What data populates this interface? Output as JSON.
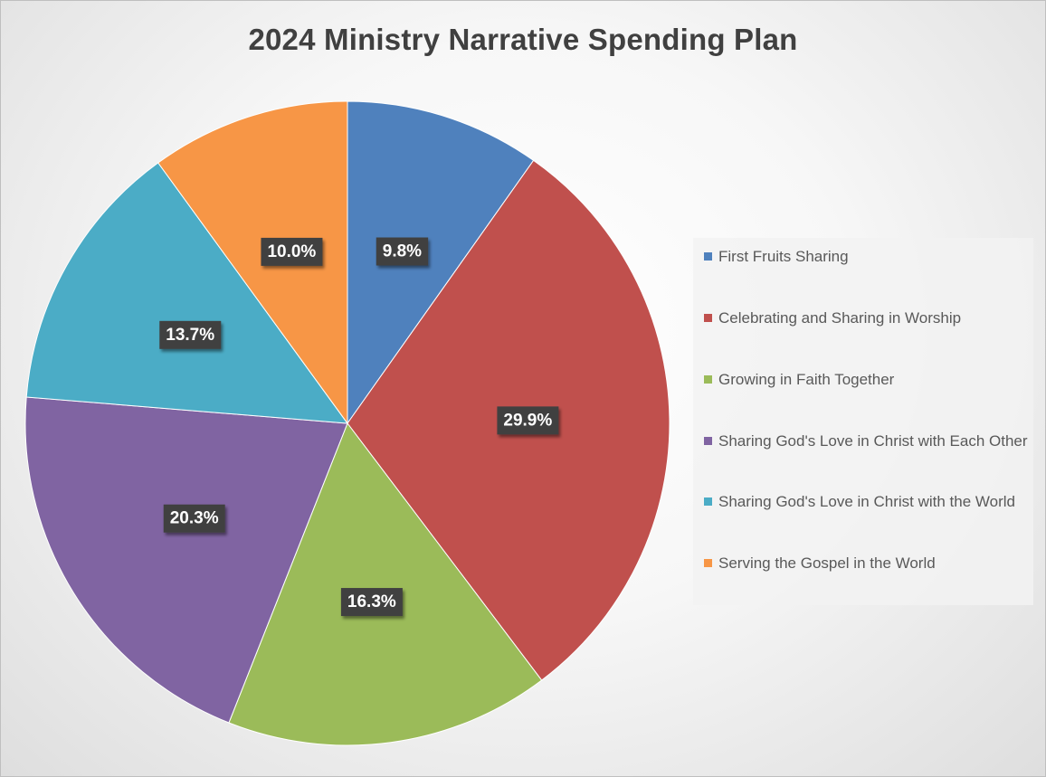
{
  "chart_data": {
    "type": "pie",
    "title": "2024 Ministry Narrative Spending Plan",
    "categories": [
      "First Fruits Sharing",
      "Celebrating and Sharing in Worship",
      "Growing in Faith Together",
      "Sharing God's Love in Christ with Each Other",
      "Sharing God's Love in Christ with the World",
      "Serving the Gospel in the World"
    ],
    "values": [
      9.8,
      29.9,
      16.3,
      20.3,
      13.7,
      10.0
    ],
    "data_labels": [
      "9.8%",
      "29.9%",
      "16.3%",
      "20.3%",
      "13.7%",
      "10.0%"
    ],
    "colors": [
      "#4f81bd",
      "#c0504d",
      "#9bbb59",
      "#8064a2",
      "#4bacc6",
      "#f79646"
    ],
    "start_angle_deg": 0,
    "direction": "clockwise",
    "legend_position": "right"
  }
}
